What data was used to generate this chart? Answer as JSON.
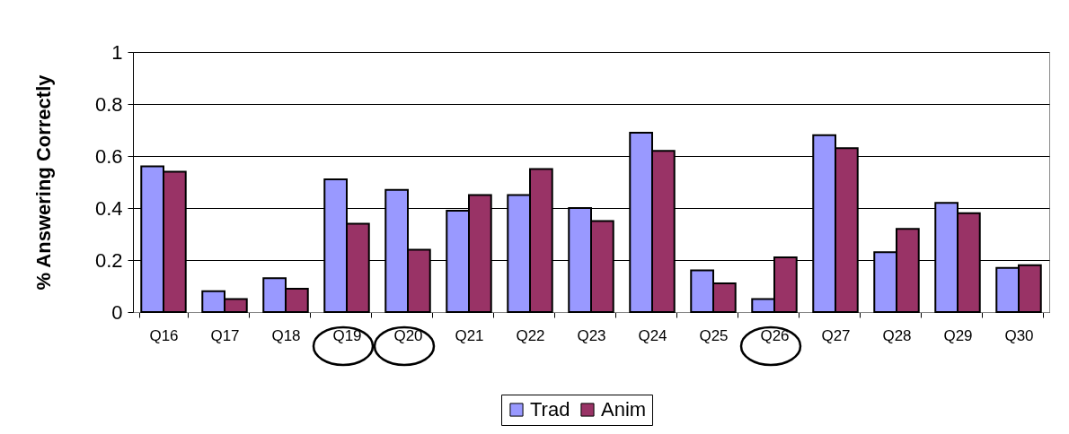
{
  "chart_data": {
    "type": "bar",
    "ylabel": "% Answering Correctly",
    "categories": [
      "Q16",
      "Q17",
      "Q18",
      "Q19",
      "Q20",
      "Q21",
      "Q22",
      "Q23",
      "Q24",
      "Q25",
      "Q26",
      "Q27",
      "Q28",
      "Q29",
      "Q30"
    ],
    "series": [
      {
        "name": "Trad",
        "color": "#9999ff",
        "values": [
          0.56,
          0.08,
          0.13,
          0.51,
          0.47,
          0.39,
          0.45,
          0.4,
          0.69,
          0.16,
          0.05,
          0.68,
          0.23,
          0.42,
          0.17
        ]
      },
      {
        "name": "Anim",
        "color": "#993366",
        "values": [
          0.54,
          0.05,
          0.09,
          0.34,
          0.24,
          0.45,
          0.55,
          0.35,
          0.62,
          0.11,
          0.21,
          0.63,
          0.32,
          0.38,
          0.18
        ]
      }
    ],
    "ylim": [
      0,
      1
    ],
    "yticks": [
      0,
      0.2,
      0.4,
      0.6,
      0.8,
      1
    ],
    "grid": "y",
    "legend": "bottom"
  }
}
